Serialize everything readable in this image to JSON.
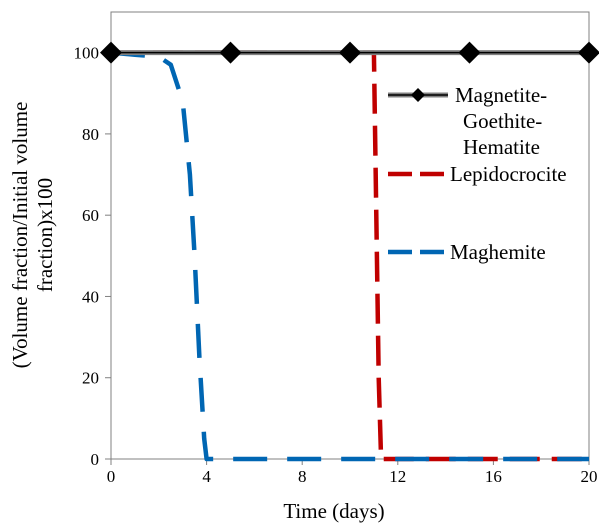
{
  "chart_data": {
    "type": "line",
    "title": "",
    "xlabel": "Time (days)",
    "ylabel_lines": [
      "(Volume fraction/Initial  volume",
      "fraction)x100"
    ],
    "xlim": [
      0,
      20
    ],
    "ylim": [
      0,
      110
    ],
    "xticks": [
      0,
      4,
      8,
      12,
      16,
      20
    ],
    "yticks": [
      0,
      20,
      40,
      60,
      80,
      100
    ],
    "grid": false,
    "legend_placement": "right",
    "series": [
      {
        "name_lines": [
          "Magnetite-",
          "Goethite-",
          "Hematite"
        ],
        "color": "#000000",
        "style": "solid-diamond",
        "x": [
          0,
          5,
          10,
          15,
          20
        ],
        "y": [
          100,
          100,
          100,
          100,
          100
        ]
      },
      {
        "name_lines": [
          "Lepidocrocite"
        ],
        "color": "#c00000",
        "style": "dash",
        "x": [
          0,
          1,
          2,
          4,
          6,
          8,
          10,
          11.0,
          11.1,
          11.2,
          11.3,
          12,
          16,
          20
        ],
        "y": [
          100,
          100,
          100,
          100,
          100,
          100,
          100,
          100,
          60,
          20,
          0,
          0,
          0,
          0
        ]
      },
      {
        "name_lines": [
          "Maghemite"
        ],
        "color": "#0066b3",
        "style": "longdash",
        "x": [
          0,
          1,
          2,
          2.5,
          3.0,
          3.3,
          3.5,
          3.7,
          3.9,
          4.0,
          5,
          8,
          12,
          16,
          20
        ],
        "y": [
          100,
          99.5,
          99,
          97,
          88,
          70,
          50,
          25,
          5,
          0,
          0,
          0,
          0,
          0,
          0
        ]
      }
    ]
  }
}
